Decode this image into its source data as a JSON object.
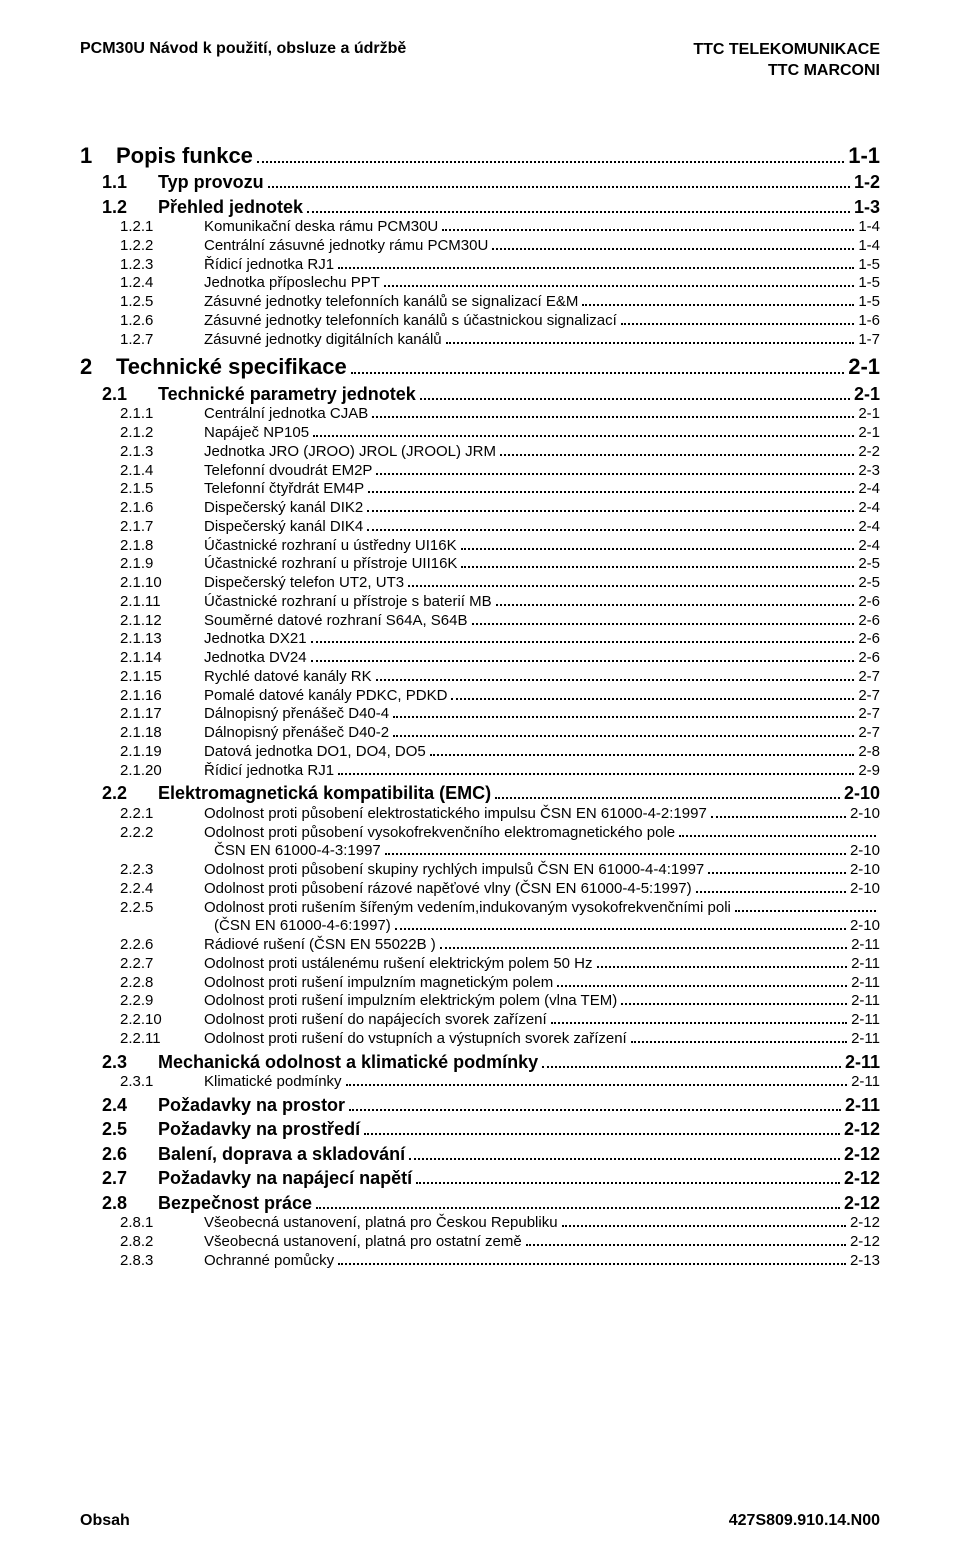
{
  "header": {
    "left": "PCM30U   Návod k použití, obsluze a údržbě",
    "right1": "TTC TELEKOMUNIKACE",
    "right2": "TTC MARCONI"
  },
  "footer": {
    "left": "Obsah",
    "right": "427S809.910.14.N00"
  },
  "toc": [
    {
      "level": 1,
      "num": "1",
      "text": "Popis funkce",
      "page": "1-1"
    },
    {
      "level": 2,
      "num": "1.1",
      "text": "Typ provozu",
      "page": "1-2"
    },
    {
      "level": 2,
      "num": "1.2",
      "text": "Přehled jednotek",
      "page": "1-3"
    },
    {
      "level": 3,
      "num": "1.2.1",
      "text": "Komunikační deska rámu PCM30U",
      "page": "1-4"
    },
    {
      "level": 3,
      "num": "1.2.2",
      "text": "Centrální zásuvné jednotky rámu PCM30U",
      "page": "1-4"
    },
    {
      "level": 3,
      "num": "1.2.3",
      "text": "Řídicí jednotka RJ1",
      "page": "1-5"
    },
    {
      "level": 3,
      "num": "1.2.4",
      "text": "Jednotka příposlechu PPT",
      "page": "1-5"
    },
    {
      "level": 3,
      "num": "1.2.5",
      "text": "Zásuvné jednotky telefonních kanálů se signalizací E&M",
      "page": "1-5"
    },
    {
      "level": 3,
      "num": "1.2.6",
      "text": "Zásuvné jednotky telefonních kanálů s účastnickou signalizací",
      "page": "1-6"
    },
    {
      "level": 3,
      "num": "1.2.7",
      "text": "Zásuvné jednotky digitálních kanálů",
      "page": "1-7"
    },
    {
      "level": 1,
      "num": "2",
      "text": "Technické specifikace",
      "page": "2-1"
    },
    {
      "level": 2,
      "num": "2.1",
      "text": "Technické parametry jednotek",
      "page": "2-1"
    },
    {
      "level": 3,
      "num": "2.1.1",
      "text": "Centrální jednotka CJAB",
      "page": "2-1"
    },
    {
      "level": 3,
      "num": "2.1.2",
      "text": "Napáječ NP105",
      "page": "2-1"
    },
    {
      "level": 3,
      "num": "2.1.3",
      "text": "Jednotka JRO (JROO) JROL (JROOL) JRM",
      "page": "2-2"
    },
    {
      "level": 3,
      "num": "2.1.4",
      "text": "Telefonní dvoudrát EM2P",
      "page": "2-3"
    },
    {
      "level": 3,
      "num": "2.1.5",
      "text": "Telefonní čtyřdrát EM4P",
      "page": "2-4"
    },
    {
      "level": 3,
      "num": "2.1.6",
      "text": "Dispečerský kanál DIK2",
      "page": "2-4"
    },
    {
      "level": 3,
      "num": "2.1.7",
      "text": "Dispečerský kanál DIK4",
      "page": "2-4"
    },
    {
      "level": 3,
      "num": "2.1.8",
      "text": "Účastnické rozhraní u ústředny UI16K",
      "page": "2-4"
    },
    {
      "level": 3,
      "num": "2.1.9",
      "text": "Účastnické rozhraní u přístroje UII16K",
      "page": "2-5"
    },
    {
      "level": 3,
      "num": "2.1.10",
      "text": "Dispečerský telefon UT2, UT3",
      "page": "2-5"
    },
    {
      "level": 3,
      "num": "2.1.11",
      "text": "Účastnické rozhraní u přístroje s baterií MB",
      "page": "2-6"
    },
    {
      "level": 3,
      "num": "2.1.12",
      "text": "Souměrné datové rozhraní S64A, S64B",
      "page": "2-6"
    },
    {
      "level": 3,
      "num": "2.1.13",
      "text": "Jednotka DX21",
      "page": "2-6"
    },
    {
      "level": 3,
      "num": "2.1.14",
      "text": "Jednotka DV24",
      "page": "2-6"
    },
    {
      "level": 3,
      "num": "2.1.15",
      "text": "Rychlé datové kanály RK",
      "page": "2-7"
    },
    {
      "level": 3,
      "num": "2.1.16",
      "text": "Pomalé datové kanály  PDKC, PDKD",
      "page": "2-7"
    },
    {
      "level": 3,
      "num": "2.1.17",
      "text": "Dálnopisný přenášeč D40-4",
      "page": "2-7"
    },
    {
      "level": 3,
      "num": "2.1.18",
      "text": "Dálnopisný přenášeč D40-2",
      "page": "2-7"
    },
    {
      "level": 3,
      "num": "2.1.19",
      "text": "Datová jednotka DO1, DO4, DO5",
      "page": "2-8"
    },
    {
      "level": 3,
      "num": "2.1.20",
      "text": "Řídicí jednotka RJ1",
      "page": "2-9"
    },
    {
      "level": 2,
      "num": "2.2",
      "text": "Elektromagnetická kompatibilita (EMC)",
      "page": "2-10"
    },
    {
      "level": 3,
      "num": "2.2.1",
      "text": "Odolnost proti působení elektrostatického impulsu ČSN EN 61000-4-2:1997",
      "page": "2-10"
    },
    {
      "level": 3,
      "num": "2.2.2",
      "text": "Odolnost proti působení vysokofrekvenčního elektromagnetického pole",
      "page": "",
      "nopg": true
    },
    {
      "level": "c",
      "num": "",
      "text": "ČSN EN 61000-4-3:1997",
      "page": "2-10"
    },
    {
      "level": 3,
      "num": "2.2.3",
      "text": "Odolnost proti působení skupiny rychlých impulsů  ČSN EN 61000-4-4:1997",
      "page": "2-10"
    },
    {
      "level": 3,
      "num": "2.2.4",
      "text": "Odolnost proti působení rázové napěťové vlny (ČSN EN 61000-4-5:1997)",
      "page": "2-10"
    },
    {
      "level": 3,
      "num": "2.2.5",
      "text": "Odolnost proti rušením šířeným vedením,indukovaným vysokofrekvenčními poli",
      "page": "",
      "nopg": true
    },
    {
      "level": "c",
      "num": "",
      "text": "(ČSN EN 61000-4-6:1997)",
      "page": "2-10"
    },
    {
      "level": 3,
      "num": "2.2.6",
      "text": "Rádiové rušení  (ČSN EN 55022B )",
      "page": "2-11"
    },
    {
      "level": 3,
      "num": "2.2.7",
      "text": "Odolnost proti ustálenému rušení elektrickým polem 50 Hz",
      "page": "2-11"
    },
    {
      "level": 3,
      "num": "2.2.8",
      "text": "Odolnost proti rušení impulzním magnetickým polem",
      "page": "2-11"
    },
    {
      "level": 3,
      "num": "2.2.9",
      "text": "Odolnost proti rušení impulzním elektrickým polem (vlna TEM)",
      "page": "2-11"
    },
    {
      "level": 3,
      "num": "2.2.10",
      "text": "Odolnost proti rušení do napájecích svorek zařízení",
      "page": "2-11"
    },
    {
      "level": 3,
      "num": "2.2.11",
      "text": "Odolnost proti rušení do vstupních a výstupních svorek zařízení",
      "page": "2-11"
    },
    {
      "level": 2,
      "num": "2.3",
      "text": "Mechanická odolnost a klimatické podmínky",
      "page": "2-11"
    },
    {
      "level": 3,
      "num": "2.3.1",
      "text": "Klimatické podmínky",
      "page": "2-11"
    },
    {
      "level": 2,
      "num": "2.4",
      "text": "Požadavky na prostor",
      "page": "2-11"
    },
    {
      "level": 2,
      "num": "2.5",
      "text": "Požadavky na prostředí",
      "page": "2-12"
    },
    {
      "level": 2,
      "num": "2.6",
      "text": "Balení, doprava a skladování",
      "page": "2-12"
    },
    {
      "level": 2,
      "num": "2.7",
      "text": "Požadavky na napájecí napětí",
      "page": "2-12"
    },
    {
      "level": 2,
      "num": "2.8",
      "text": "Bezpečnost práce",
      "page": "2-12"
    },
    {
      "level": 3,
      "num": "2.8.1",
      "text": "Všeobecná ustanovení, platná pro Českou Republiku",
      "page": "2-12"
    },
    {
      "level": 3,
      "num": "2.8.2",
      "text": "Všeobecná ustanovení, platná pro ostatní země",
      "page": "2-12"
    },
    {
      "level": 3,
      "num": "2.8.3",
      "text": "Ochranné pomůcky",
      "page": "2-13"
    }
  ]
}
